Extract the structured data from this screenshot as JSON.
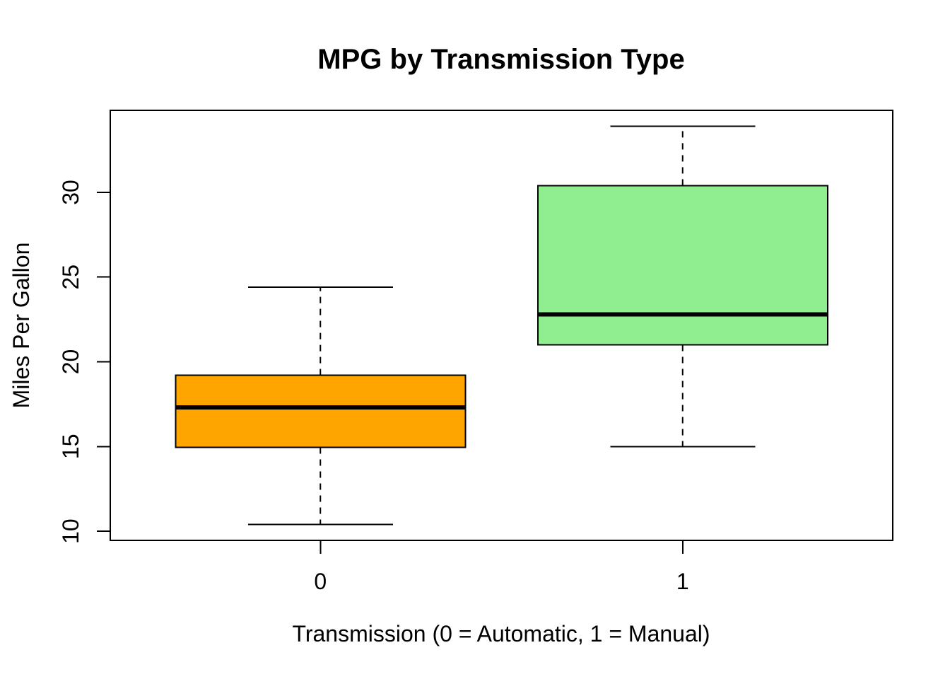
{
  "figure": {
    "background": "#FFFFFF"
  },
  "chart_data": {
    "type": "boxplot",
    "title": "MPG by Transmission Type",
    "xlabel": "Transmission (0 = Automatic, 1 = Manual)",
    "ylabel": "Miles Per Gallon",
    "categories": [
      "0",
      "1"
    ],
    "series": [
      {
        "label": "0",
        "meaning": "Automatic",
        "position": 1,
        "whisker_low": 10.4,
        "q1": 14.95,
        "median": 17.3,
        "q3": 19.2,
        "whisker_high": 24.4,
        "outliers": [],
        "fill": "#FFA500"
      },
      {
        "label": "1",
        "meaning": "Manual",
        "position": 2,
        "whisker_low": 15.0,
        "q1": 21.0,
        "median": 22.8,
        "q3": 30.4,
        "whisker_high": 33.9,
        "outliers": [],
        "fill": "#90EE90"
      }
    ],
    "xlim": [
      0.42,
      2.58
    ],
    "ylim": [
      9.46,
      34.84
    ],
    "y_ticks": [
      10,
      15,
      20,
      25,
      30
    ],
    "box_width_units": 0.8,
    "staple_width_units": 0.4,
    "grid": false,
    "legend": "none",
    "styles": {
      "line_color": "#000000",
      "box_border_width": 2,
      "median_width": 6,
      "whisker_dash": "9 8",
      "tick_length": 19
    }
  }
}
